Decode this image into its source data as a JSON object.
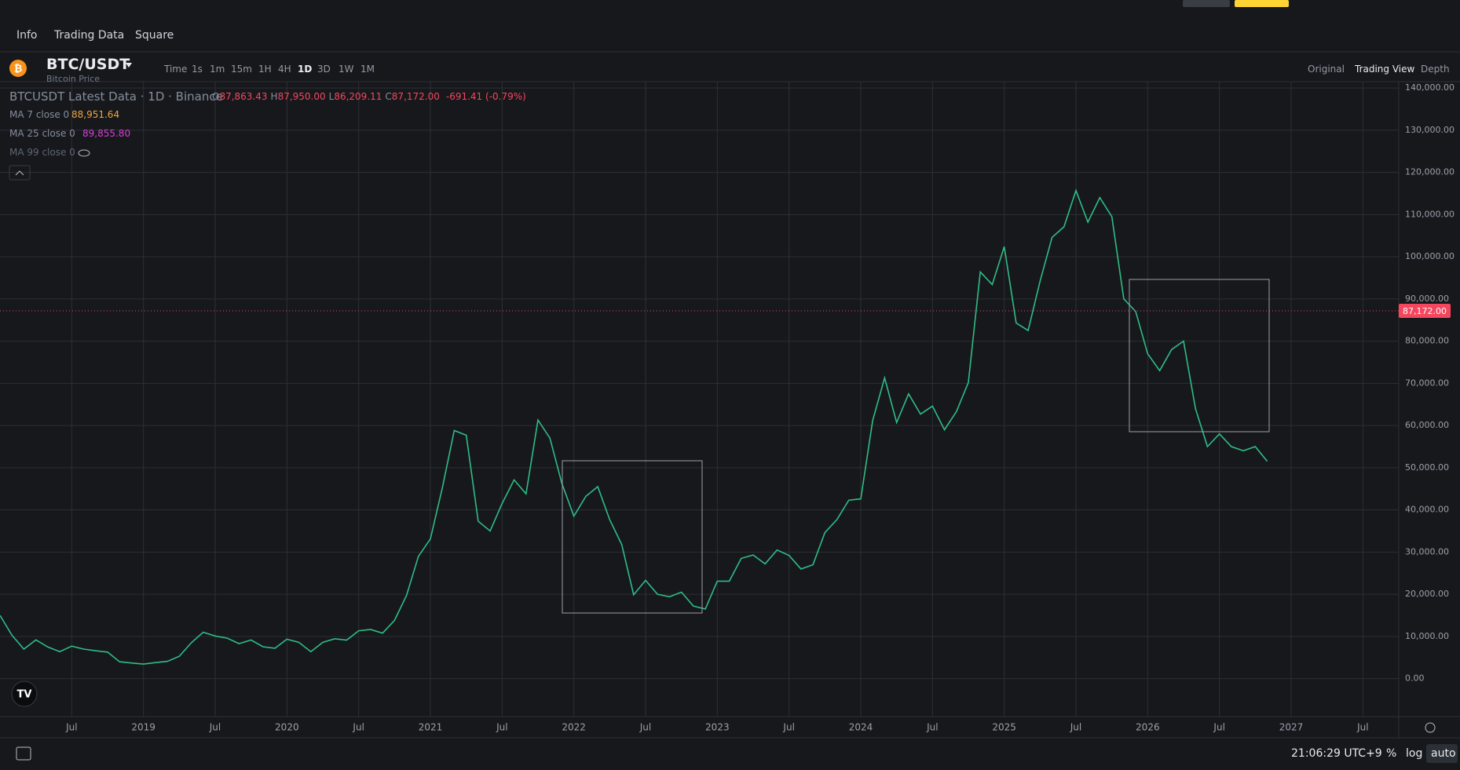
{
  "header": {
    "tabs": [
      "Info",
      "Trading Data",
      "Square"
    ]
  },
  "toolbar": {
    "symbol": "BTC/USDT",
    "subtitle": "Bitcoin Price",
    "intervals": [
      "Time",
      "1s",
      "1m",
      "15m",
      "1H",
      "4H",
      "1D",
      "3D",
      "1W",
      "1M"
    ],
    "active_interval": 6,
    "views": [
      "Original",
      "Trading View",
      "Depth"
    ],
    "active_view": 1
  },
  "legend": {
    "title": "BTCUSDT Latest Data · 1D · Binance",
    "ohlc": [
      {
        "key": "O",
        "value": "87,863.43"
      },
      {
        "key": "H",
        "value": "87,950.00"
      },
      {
        "key": "L",
        "value": "86,209.11"
      },
      {
        "key": "C",
        "value": "87,172.00"
      }
    ],
    "change": "-691.41 (-0.79%)",
    "ma": [
      {
        "label": "MA 7 close 0",
        "value": "88,951.64",
        "color": "#f0a63c"
      },
      {
        "label": "MA 25 close 0",
        "value": "89,855.80",
        "color": "#d63fd6"
      },
      {
        "label": "MA 99 close 0"
      }
    ]
  },
  "chart_data": {
    "type": "line",
    "color": "#2ebd85",
    "grid": true,
    "x": [
      "2018-01",
      "2018-02",
      "2018-03",
      "2018-04",
      "2018-05",
      "2018-06",
      "2018-07",
      "2018-08",
      "2018-09",
      "2018-10",
      "2018-11",
      "2018-12",
      "2019-01",
      "2019-02",
      "2019-03",
      "2019-04",
      "2019-05",
      "2019-06",
      "2019-07",
      "2019-08",
      "2019-09",
      "2019-10",
      "2019-11",
      "2019-12",
      "2020-01",
      "2020-02",
      "2020-03",
      "2020-04",
      "2020-05",
      "2020-06",
      "2020-07",
      "2020-08",
      "2020-09",
      "2020-10",
      "2020-11",
      "2020-12",
      "2021-01",
      "2021-02",
      "2021-03",
      "2021-04",
      "2021-05",
      "2021-06",
      "2021-07",
      "2021-08",
      "2021-09",
      "2021-10",
      "2021-11",
      "2021-12",
      "2022-01",
      "2022-02",
      "2022-03",
      "2022-04",
      "2022-05",
      "2022-06",
      "2022-07",
      "2022-08",
      "2022-09",
      "2022-10",
      "2022-11",
      "2022-12",
      "2023-01",
      "2023-02",
      "2023-03",
      "2023-04",
      "2023-05",
      "2023-06",
      "2023-07",
      "2023-08",
      "2023-09",
      "2023-10",
      "2023-11",
      "2023-12",
      "2024-01",
      "2024-02",
      "2024-03",
      "2024-04",
      "2024-05",
      "2024-06",
      "2024-07",
      "2024-08",
      "2024-09",
      "2024-10",
      "2024-11",
      "2024-12",
      "2025-01",
      "2025-02",
      "2025-03",
      "2025-04",
      "2025-05",
      "2025-06",
      "2025-07",
      "2025-08",
      "2025-09",
      "2025-10",
      "2025-11",
      "2025-12",
      "2026-01",
      "2026-02",
      "2026-03",
      "2026-04",
      "2026-05",
      "2026-06",
      "2026-07",
      "2026-08",
      "2026-09",
      "2026-10",
      "2026-11"
    ],
    "values": [
      15000,
      10300,
      7000,
      9200,
      7500,
      6400,
      7700,
      7000,
      6600,
      6300,
      4000,
      3700,
      3450,
      3800,
      4100,
      5300,
      8500,
      11000,
      10100,
      9600,
      8300,
      9150,
      7550,
      7200,
      9350,
      8600,
      6400,
      8600,
      9450,
      9140,
      11350,
      11650,
      10780,
      13800,
      19700,
      29000,
      33100,
      45200,
      58800,
      57700,
      37300,
      35000,
      41500,
      47100,
      43800,
      61300,
      57000,
      46300,
      38500,
      43200,
      45500,
      37700,
      31800,
      19900,
      23300,
      20000,
      19400,
      20500,
      17200,
      16500,
      23100,
      23100,
      28500,
      29300,
      27200,
      30500,
      29200,
      26000,
      27000,
      34600,
      37700,
      42300,
      42600,
      61200,
      71300,
      60700,
      67500,
      62700,
      64600,
      59000,
      63300,
      70200,
      96400,
      93400,
      102400,
      84300,
      82500,
      94200,
      104600,
      107100,
      115700,
      108200,
      114000,
      109500,
      90000,
      87000,
      77000,
      73000,
      78000,
      80000,
      64000,
      55000,
      58000,
      55000,
      54000,
      55000,
      51500
    ],
    "xlim": [
      "2018-01",
      "2027-10"
    ],
    "xticks": [
      {
        "value": "2018-07",
        "label": "Jul"
      },
      {
        "value": "2019-01",
        "label": "2019"
      },
      {
        "value": "2019-07",
        "label": "Jul"
      },
      {
        "value": "2020-01",
        "label": "2020"
      },
      {
        "value": "2020-07",
        "label": "Jul"
      },
      {
        "value": "2021-01",
        "label": "2021"
      },
      {
        "value": "2021-07",
        "label": "Jul"
      },
      {
        "value": "2022-01",
        "label": "2022"
      },
      {
        "value": "2022-07",
        "label": "Jul"
      },
      {
        "value": "2023-01",
        "label": "2023"
      },
      {
        "value": "2023-07",
        "label": "Jul"
      },
      {
        "value": "2024-01",
        "label": "2024"
      },
      {
        "value": "2024-07",
        "label": "Jul"
      },
      {
        "value": "2025-01",
        "label": "2025"
      },
      {
        "value": "2025-07",
        "label": "Jul"
      },
      {
        "value": "2026-01",
        "label": "2026"
      },
      {
        "value": "2026-07",
        "label": "Jul"
      },
      {
        "value": "2027-01",
        "label": "2027"
      },
      {
        "value": "2027-07",
        "label": "Jul"
      }
    ],
    "ylim": [
      -9000,
      141500
    ],
    "yticks": [
      {
        "value": 0,
        "label": "0.00"
      },
      {
        "value": 10000,
        "label": "10,000.00"
      },
      {
        "value": 20000,
        "label": "20,000.00"
      },
      {
        "value": 30000,
        "label": "30,000.00"
      },
      {
        "value": 40000,
        "label": "40,000.00"
      },
      {
        "value": 50000,
        "label": "50,000.00"
      },
      {
        "value": 60000,
        "label": "60,000.00"
      },
      {
        "value": 70000,
        "label": "70,000.00"
      },
      {
        "value": 80000,
        "label": "80,000.00"
      },
      {
        "value": 90000,
        "label": "90,000.00"
      },
      {
        "value": 100000,
        "label": "100,000.00"
      },
      {
        "value": 110000,
        "label": "110,000.00"
      },
      {
        "value": 120000,
        "label": "120,000.00"
      },
      {
        "value": 130000,
        "label": "130,000.00"
      },
      {
        "value": 140000,
        "label": "140,000.00"
      }
    ],
    "price_line": {
      "value": 87172,
      "label": "87,172.00",
      "color": "#f6465d"
    }
  },
  "footer": {
    "time": "21:06:29 UTC+9",
    "buttons": [
      "%",
      "log",
      "auto"
    ]
  }
}
